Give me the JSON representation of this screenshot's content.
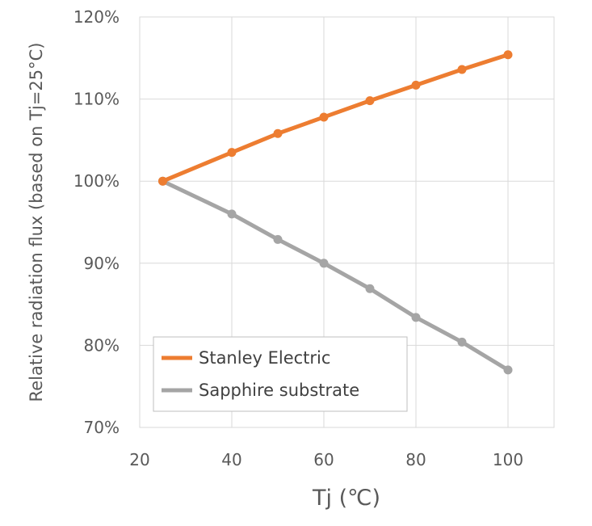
{
  "chart_data": {
    "type": "line",
    "title": "",
    "xlabel": "Tj (℃)",
    "ylabel": "Relative radiation flux (based on Tj=25°C)",
    "xlim": [
      20,
      110
    ],
    "ylim": [
      70,
      120
    ],
    "x_ticks": [
      20,
      40,
      60,
      80,
      100
    ],
    "y_ticks": [
      70,
      80,
      90,
      100,
      110,
      120
    ],
    "y_tick_labels": [
      "70%",
      "80%",
      "90%",
      "100%",
      "110%",
      "120%"
    ],
    "grid": true,
    "legend_position": "bottom-left",
    "series": [
      {
        "name": "Stanley Electric",
        "color": "#ED7D31",
        "x": [
          25,
          40,
          50,
          60,
          70,
          80,
          90,
          100
        ],
        "values": [
          100,
          103.5,
          105.8,
          107.8,
          109.8,
          111.7,
          113.6,
          115.4
        ]
      },
      {
        "name": "Sapphire substrate",
        "color": "#A5A5A5",
        "x": [
          25,
          40,
          50,
          60,
          70,
          80,
          90,
          100
        ],
        "values": [
          100,
          96,
          92.9,
          90,
          86.9,
          83.4,
          80.4,
          77
        ]
      }
    ]
  }
}
